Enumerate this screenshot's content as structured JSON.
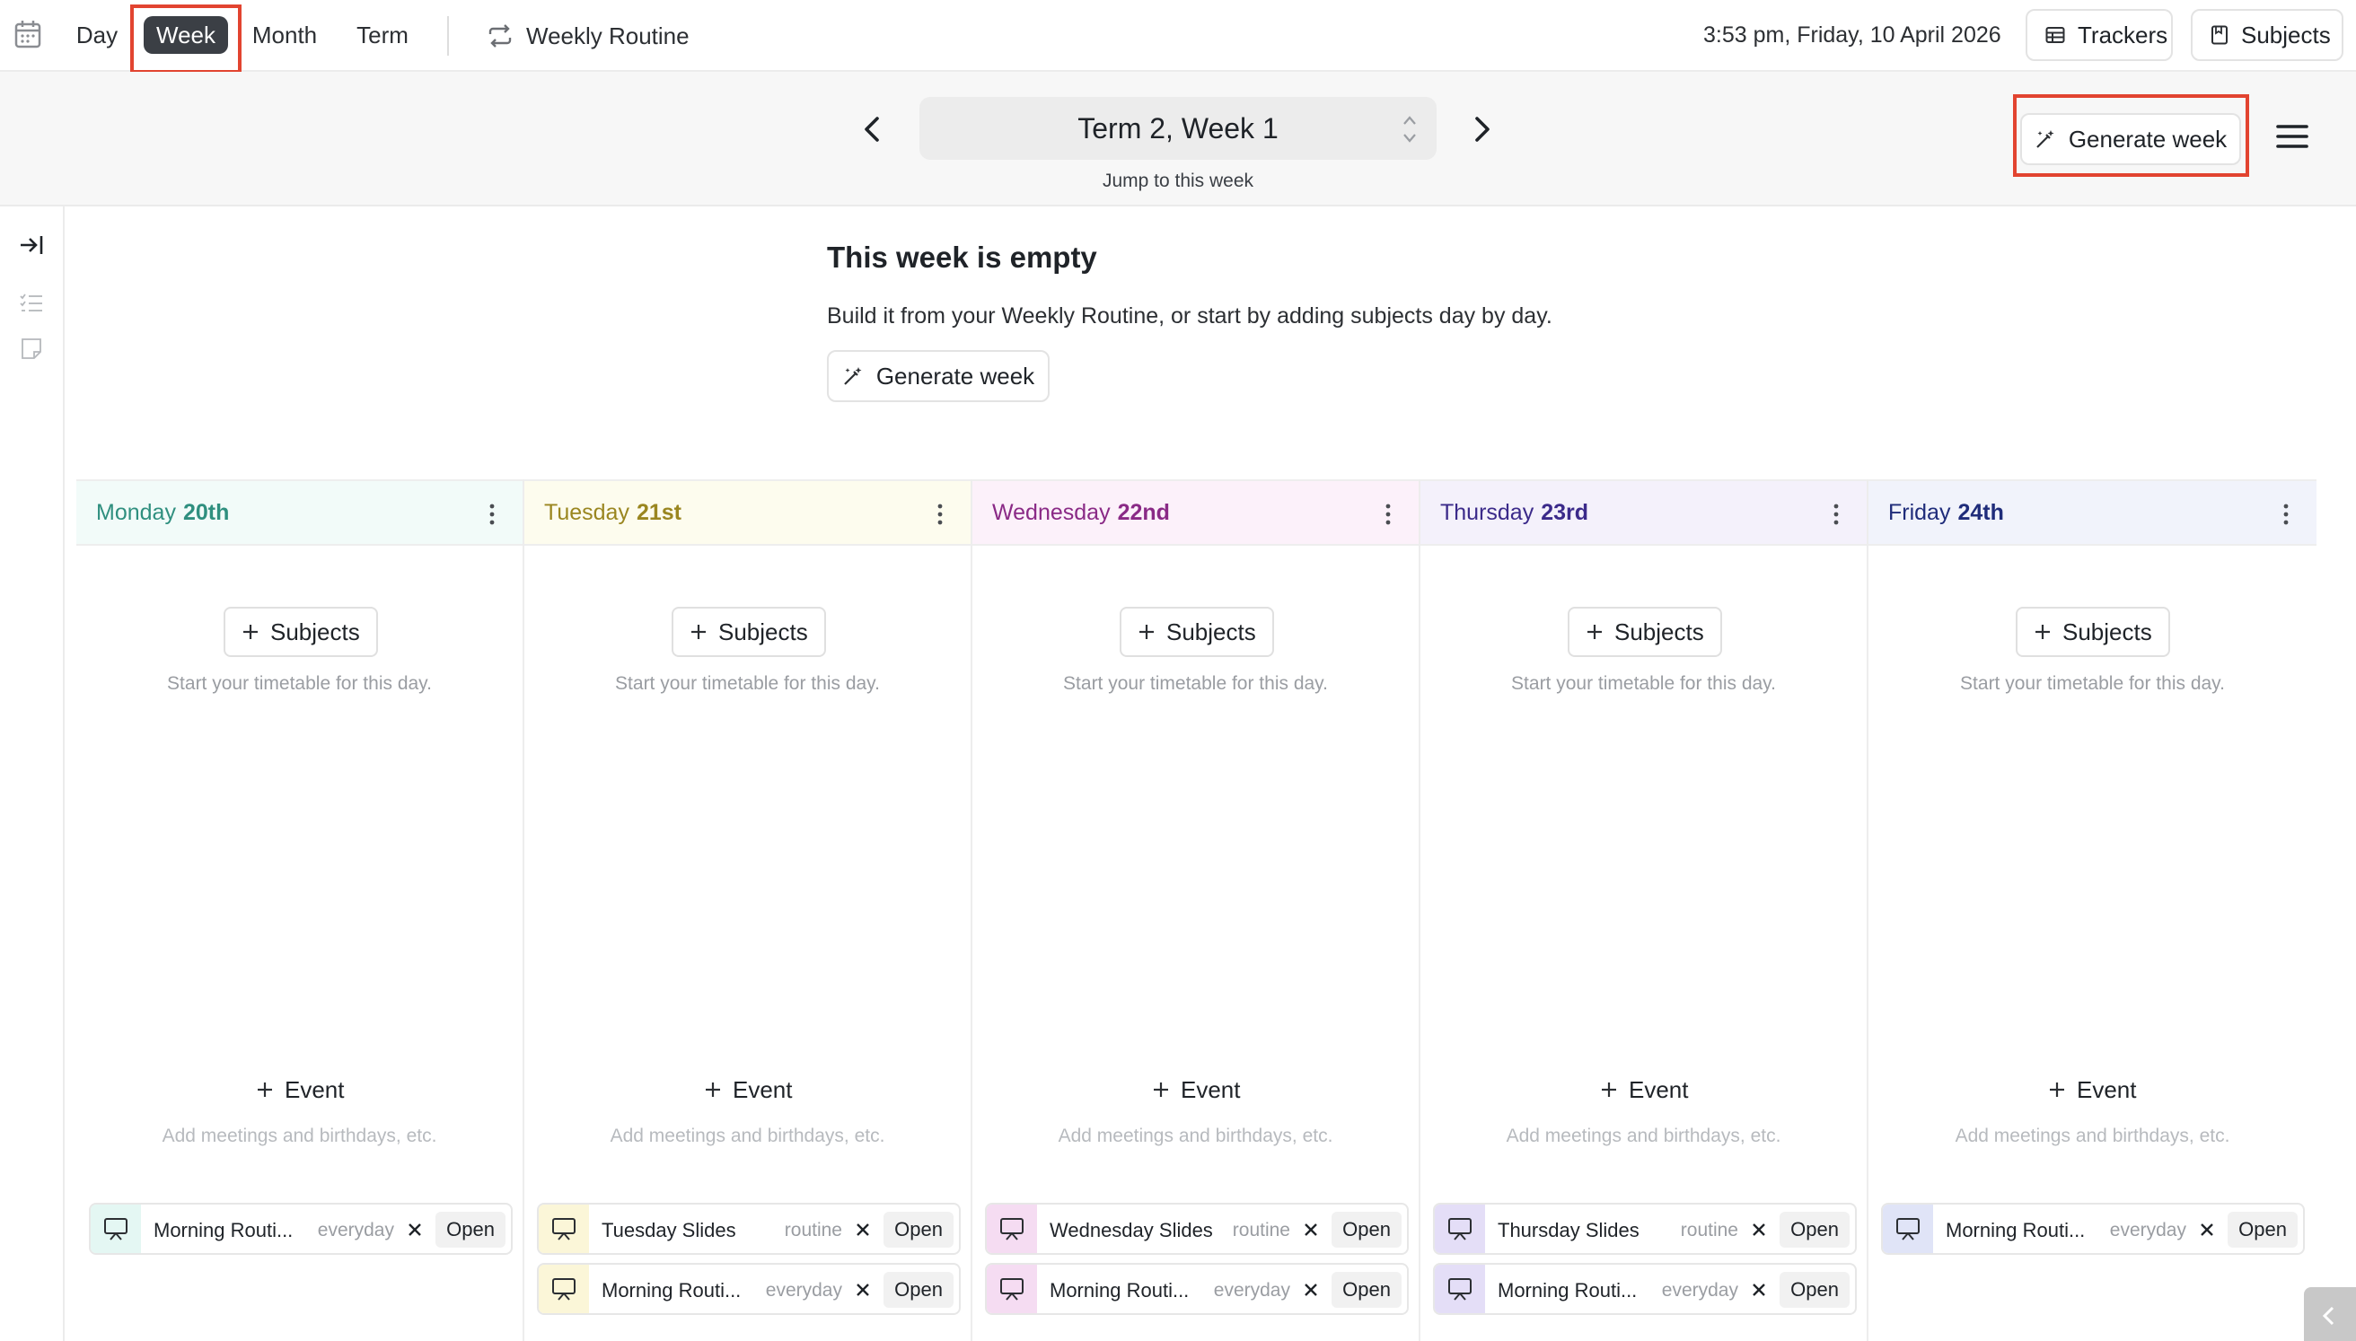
{
  "nav": {
    "tabs": [
      {
        "label": "Day",
        "active": false
      },
      {
        "label": "Week",
        "active": true
      },
      {
        "label": "Month",
        "active": false
      },
      {
        "label": "Term",
        "active": false
      }
    ],
    "routine_link": "Weekly Routine",
    "datetime": "3:53 pm, Friday, 10 April 2026",
    "trackers_label": "Trackers",
    "subjects_label": "Subjects",
    "icons": [
      "calendar-icon",
      "repeat-icon",
      "table-icon",
      "book-icon"
    ]
  },
  "week_nav": {
    "title": "Term 2, Week 1",
    "jump_label": "Jump to this week",
    "generate_label": "Generate week"
  },
  "empty_state": {
    "title": "This week is empty",
    "description": "Build it from your Weekly Routine, or start by adding subjects day by day.",
    "button_label": "Generate week"
  },
  "days": [
    {
      "name": "Monday",
      "date": "20th",
      "color": "#2f8f7f",
      "header_bg": "#f2fbf9",
      "subjects_label": "Subjects",
      "subjects_hint": "Start your timetable for this day.",
      "event_label": "Event",
      "event_hint": "Add meetings and birthdays, etc.",
      "slides": [
        {
          "title": "Morning Routi...",
          "tag": "everyday",
          "open": "Open",
          "icon_bg": "#e4f7f3"
        }
      ]
    },
    {
      "name": "Tuesday",
      "date": "21st",
      "color": "#9a8620",
      "header_bg": "#fdfcee",
      "subjects_label": "Subjects",
      "subjects_hint": "Start your timetable for this day.",
      "event_label": "Event",
      "event_hint": "Add meetings and birthdays, etc.",
      "slides": [
        {
          "title": "Tuesday Slides",
          "tag": "routine",
          "open": "Open",
          "icon_bg": "#fbf6d8"
        },
        {
          "title": "Morning Routi...",
          "tag": "everyday",
          "open": "Open",
          "icon_bg": "#fbf6d8"
        }
      ]
    },
    {
      "name": "Wednesday",
      "date": "22nd",
      "color": "#8a2a86",
      "header_bg": "#fcf1fa",
      "subjects_label": "Subjects",
      "subjects_hint": "Start your timetable for this day.",
      "event_label": "Event",
      "event_hint": "Add meetings and birthdays, etc.",
      "slides": [
        {
          "title": "Wednesday Slides",
          "tag": "routine",
          "open": "Open",
          "icon_bg": "#f5dcf2"
        },
        {
          "title": "Morning Routi...",
          "tag": "everyday",
          "open": "Open",
          "icon_bg": "#f5dcf2"
        }
      ]
    },
    {
      "name": "Thursday",
      "date": "23rd",
      "color": "#3b2a8a",
      "header_bg": "#f4f1fb",
      "subjects_label": "Subjects",
      "subjects_hint": "Start your timetable for this day.",
      "event_label": "Event",
      "event_hint": "Add meetings and birthdays, etc.",
      "slides": [
        {
          "title": "Thursday Slides",
          "tag": "routine",
          "open": "Open",
          "icon_bg": "#e4def7"
        },
        {
          "title": "Morning Routi...",
          "tag": "everyday",
          "open": "Open",
          "icon_bg": "#e4def7"
        }
      ]
    },
    {
      "name": "Friday",
      "date": "24th",
      "color": "#1f2c7a",
      "header_bg": "#f1f3fb",
      "subjects_label": "Subjects",
      "subjects_hint": "Start your timetable for this day.",
      "event_label": "Event",
      "event_hint": "Add meetings and birthdays, etc.",
      "slides": [
        {
          "title": "Morning Routi...",
          "tag": "everyday",
          "open": "Open",
          "icon_bg": "#e0e4f7"
        }
      ]
    }
  ],
  "colors": {
    "accent_dark": "#3b3f45",
    "highlight_red": "#e24430",
    "muted_text": "#9a9da2"
  }
}
